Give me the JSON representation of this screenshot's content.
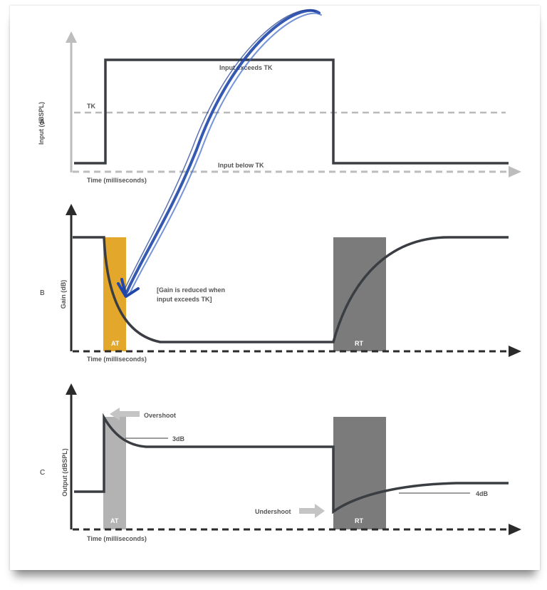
{
  "panels": {
    "a": {
      "letter": "A",
      "y_label": "Input (dBSPL)",
      "x_label": "Time (milliseconds)",
      "tk_label": "TK",
      "above_label": "Input exceeds TK",
      "below_label": "Input below TK"
    },
    "b": {
      "letter": "B",
      "y_label": "Gain (dB)",
      "x_label": "Time (milliseconds)",
      "note_line1": "[Gain is reduced when",
      "note_line2": "input exceeds TK]",
      "at_label": "AT",
      "rt_label": "RT"
    },
    "c": {
      "letter": "C",
      "y_label": "Output (dBSPL)",
      "x_label": "Time (milliseconds)",
      "overshoot_label": "Overshoot",
      "overshoot_value": "3dB",
      "undershoot_label": "Undershoot",
      "undershoot_value": "4dB",
      "at_label": "AT",
      "rt_label": "RT"
    }
  },
  "colors": {
    "signal": "#3a3d42",
    "axis_a": "#bdbdbd",
    "axis": "#2b2b2b",
    "at_b": "#e2a72b",
    "at_c": "#b3b3b3",
    "rt": "#7b7b7b",
    "pen": "#1f46a8"
  }
}
